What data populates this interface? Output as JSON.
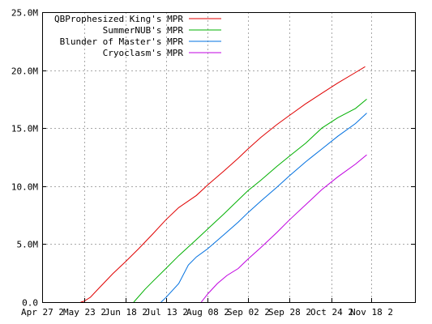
{
  "chart_data": {
    "type": "line",
    "x_unit": "date",
    "xlim": [
      "Apr 27",
      "Dec 15"
    ],
    "ylim": [
      0,
      25000000
    ],
    "grid": true,
    "legend_placement": "top-left",
    "x_ticks": [
      "Apr 27 2",
      "May 23 2",
      "Jun 18 2",
      "Jul 13 2",
      "Aug 08 2",
      "Sep 02 2",
      "Sep 28 2",
      "Oct 24 2",
      "Nov 18 2"
    ],
    "y_ticks": [
      "0.0",
      "5.0M",
      "10.0M",
      "15.0M",
      "20.0M",
      "25.0M"
    ],
    "y_tick_values": [
      0,
      5000000,
      10000000,
      15000000,
      20000000,
      25000000
    ],
    "series": [
      {
        "name": "QBProphesized King's MPR",
        "color": "#e00000",
        "points": [
          [
            "May 21",
            0
          ],
          [
            "May 23",
            80000
          ],
          [
            "May 27",
            420000
          ],
          [
            "Jun 02",
            1300000
          ],
          [
            "Jun 10",
            2450000
          ],
          [
            "Jun 18",
            3500000
          ],
          [
            "Jun 26",
            4600000
          ],
          [
            "Jul 05",
            5900000
          ],
          [
            "Jul 13",
            7100000
          ],
          [
            "Jul 21",
            8150000
          ],
          [
            "Aug 01",
            9200000
          ],
          [
            "Aug 08",
            10100000
          ],
          [
            "Aug 18",
            11300000
          ],
          [
            "Aug 27",
            12400000
          ],
          [
            "Sep 02",
            13200000
          ],
          [
            "Sep 10",
            14200000
          ],
          [
            "Sep 20",
            15300000
          ],
          [
            "Sep 28",
            16100000
          ],
          [
            "Oct 08",
            17100000
          ],
          [
            "Oct 18",
            18000000
          ],
          [
            "Oct 28",
            18900000
          ],
          [
            "Nov 08",
            19800000
          ],
          [
            "Nov 14",
            20300000
          ]
        ]
      },
      {
        "name": "SummerNUB's MPR",
        "color": "#00b000",
        "points": [
          [
            "Jun 23",
            0
          ],
          [
            "Jun 30",
            1100000
          ],
          [
            "Jul 05",
            1800000
          ],
          [
            "Jul 13",
            2900000
          ],
          [
            "Jul 21",
            4000000
          ],
          [
            "Aug 01",
            5400000
          ],
          [
            "Aug 08",
            6300000
          ],
          [
            "Aug 18",
            7600000
          ],
          [
            "Aug 27",
            8800000
          ],
          [
            "Sep 02",
            9600000
          ],
          [
            "Sep 10",
            10500000
          ],
          [
            "Sep 20",
            11700000
          ],
          [
            "Sep 28",
            12600000
          ],
          [
            "Oct 08",
            13700000
          ],
          [
            "Oct 18",
            15000000
          ],
          [
            "Oct 28",
            15900000
          ],
          [
            "Nov 08",
            16700000
          ],
          [
            "Nov 15",
            17500000
          ]
        ]
      },
      {
        "name": "Blunder of Master's MPR",
        "color": "#0070e0",
        "points": [
          [
            "Jul 10",
            0
          ],
          [
            "Jul 13",
            400000
          ],
          [
            "Jul 21",
            1600000
          ],
          [
            "Jul 27",
            3200000
          ],
          [
            "Aug 01",
            3900000
          ],
          [
            "Aug 08",
            4600000
          ],
          [
            "Aug 18",
            5800000
          ],
          [
            "Aug 27",
            6900000
          ],
          [
            "Sep 02",
            7700000
          ],
          [
            "Sep 10",
            8700000
          ],
          [
            "Sep 20",
            9900000
          ],
          [
            "Sep 28",
            10900000
          ],
          [
            "Oct 08",
            12100000
          ],
          [
            "Oct 18",
            13200000
          ],
          [
            "Oct 28",
            14300000
          ],
          [
            "Nov 08",
            15400000
          ],
          [
            "Nov 15",
            16300000
          ]
        ]
      },
      {
        "name": "Cryoclasm's MPR",
        "color": "#c000e0",
        "points": [
          [
            "Aug 04",
            0
          ],
          [
            "Aug 08",
            700000
          ],
          [
            "Aug 14",
            1600000
          ],
          [
            "Aug 20",
            2300000
          ],
          [
            "Aug 27",
            2900000
          ],
          [
            "Sep 02",
            3700000
          ],
          [
            "Sep 10",
            4700000
          ],
          [
            "Sep 20",
            6000000
          ],
          [
            "Sep 28",
            7100000
          ],
          [
            "Oct 08",
            8400000
          ],
          [
            "Oct 18",
            9700000
          ],
          [
            "Oct 28",
            10800000
          ],
          [
            "Nov 08",
            11900000
          ],
          [
            "Nov 15",
            12700000
          ]
        ]
      }
    ]
  }
}
